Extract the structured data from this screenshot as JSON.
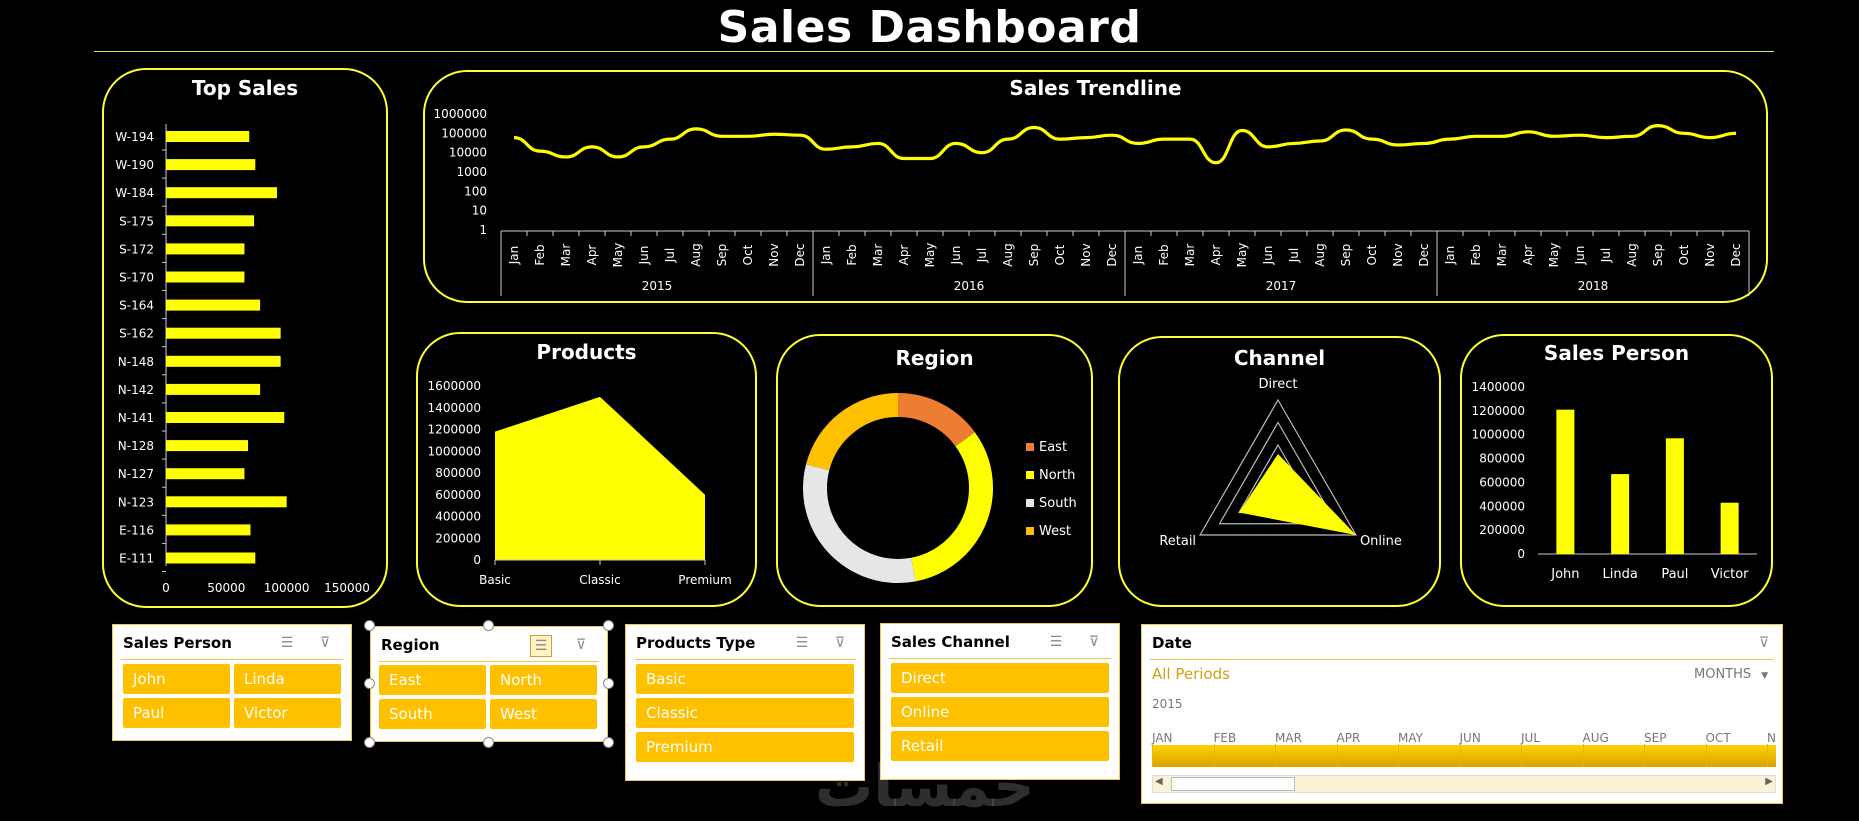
{
  "dashboard": {
    "title": "Sales Dashboard"
  },
  "top_sales": {
    "title": "Top Sales",
    "chart_data": {
      "type": "bar",
      "orientation": "horizontal",
      "categories": [
        "W-194",
        "W-190",
        "W-184",
        "S-175",
        "S-172",
        "S-170",
        "S-164",
        "S-162",
        "N-148",
        "N-142",
        "N-141",
        "N-128",
        "N-127",
        "N-123",
        "E-116",
        "E-111"
      ],
      "values": [
        69000,
        74000,
        92000,
        73000,
        65000,
        65000,
        78000,
        95000,
        95000,
        78000,
        98000,
        68000,
        65000,
        100000,
        70000,
        74000
      ],
      "xlim": [
        0,
        150000
      ],
      "xticks": [
        "0",
        "50000",
        "100000",
        "150000"
      ],
      "bar_color": "#ffff00"
    }
  },
  "trendline": {
    "title": "Sales Trendline",
    "chart_data": {
      "type": "line",
      "yscale": "log",
      "yticks": [
        "1",
        "10",
        "100",
        "1000",
        "10000",
        "100000",
        "1000000"
      ],
      "months": [
        "Jan",
        "Feb",
        "Mar",
        "Apr",
        "May",
        "Jun",
        "Jul",
        "Aug",
        "Sep",
        "Oct",
        "Nov",
        "Dec"
      ],
      "years": [
        "2015",
        "2016",
        "2017",
        "2018"
      ],
      "values": [
        60000,
        12000,
        6000,
        20000,
        6000,
        20000,
        50000,
        170000,
        70000,
        70000,
        90000,
        80000,
        15000,
        20000,
        30000,
        5000,
        5000,
        30000,
        10000,
        50000,
        200000,
        50000,
        60000,
        80000,
        30000,
        50000,
        50000,
        3000,
        140000,
        20000,
        30000,
        40000,
        150000,
        50000,
        25000,
        30000,
        50000,
        70000,
        70000,
        120000,
        70000,
        80000,
        60000,
        70000,
        250000,
        100000,
        60000,
        100000
      ],
      "line_color": "#ffff00"
    }
  },
  "products": {
    "title": "Products",
    "chart_data": {
      "type": "area",
      "categories": [
        "Basic",
        "Classic",
        "Premium"
      ],
      "values": [
        1180000,
        1500000,
        600000
      ],
      "ylim": [
        0,
        1600000
      ],
      "yticks": [
        "0",
        "200000",
        "400000",
        "600000",
        "800000",
        "1000000",
        "1200000",
        "1400000",
        "1600000"
      ],
      "fill_color": "#ffff00"
    }
  },
  "region": {
    "title": "Region",
    "chart_data": {
      "type": "pie",
      "style": "donut",
      "labels": [
        "East",
        "North",
        "South",
        "West"
      ],
      "values": [
        15,
        32,
        32,
        21
      ],
      "colors": [
        "#ed7d31",
        "#ffff00",
        "#e6e6e6",
        "#ffc000"
      ],
      "legend": "right"
    }
  },
  "channel": {
    "title": "Channel",
    "chart_data": {
      "type": "radar",
      "axes": [
        "Direct",
        "Online",
        "Retail"
      ],
      "values": [
        0.4,
        1.0,
        0.5
      ],
      "fill_color": "#ffff00"
    }
  },
  "sales_person_chart": {
    "title": "Sales Person",
    "chart_data": {
      "type": "bar",
      "categories": [
        "John",
        "Linda",
        "Paul",
        "Victor"
      ],
      "values": [
        1210000,
        670000,
        970000,
        430000
      ],
      "ylim": [
        0,
        1400000
      ],
      "yticks": [
        "0",
        "200000",
        "400000",
        "600000",
        "800000",
        "1000000",
        "1200000",
        "1400000"
      ],
      "bar_color": "#ffff00"
    }
  },
  "slicers": {
    "sales_person": {
      "title": "Sales Person",
      "items": [
        "John",
        "Linda",
        "Paul",
        "Victor"
      ]
    },
    "region": {
      "title": "Region",
      "items": [
        "East",
        "North",
        "South",
        "West"
      ]
    },
    "products_type": {
      "title": "Products Type",
      "items": [
        "Basic",
        "Classic",
        "Premium"
      ]
    },
    "sales_channel": {
      "title": "Sales Channel",
      "items": [
        "Direct",
        "Online",
        "Retail"
      ]
    },
    "date": {
      "title": "Date",
      "periods_label": "All Periods",
      "level": "MONTHS",
      "year": "2015",
      "months": [
        "JAN",
        "FEB",
        "MAR",
        "APR",
        "MAY",
        "JUN",
        "JUL",
        "AUG",
        "SEP",
        "OCT",
        "N"
      ]
    }
  },
  "colors": {
    "accent": "#ffff00",
    "slicer_button": "#ffc000",
    "panel_border": "#ffff33"
  }
}
